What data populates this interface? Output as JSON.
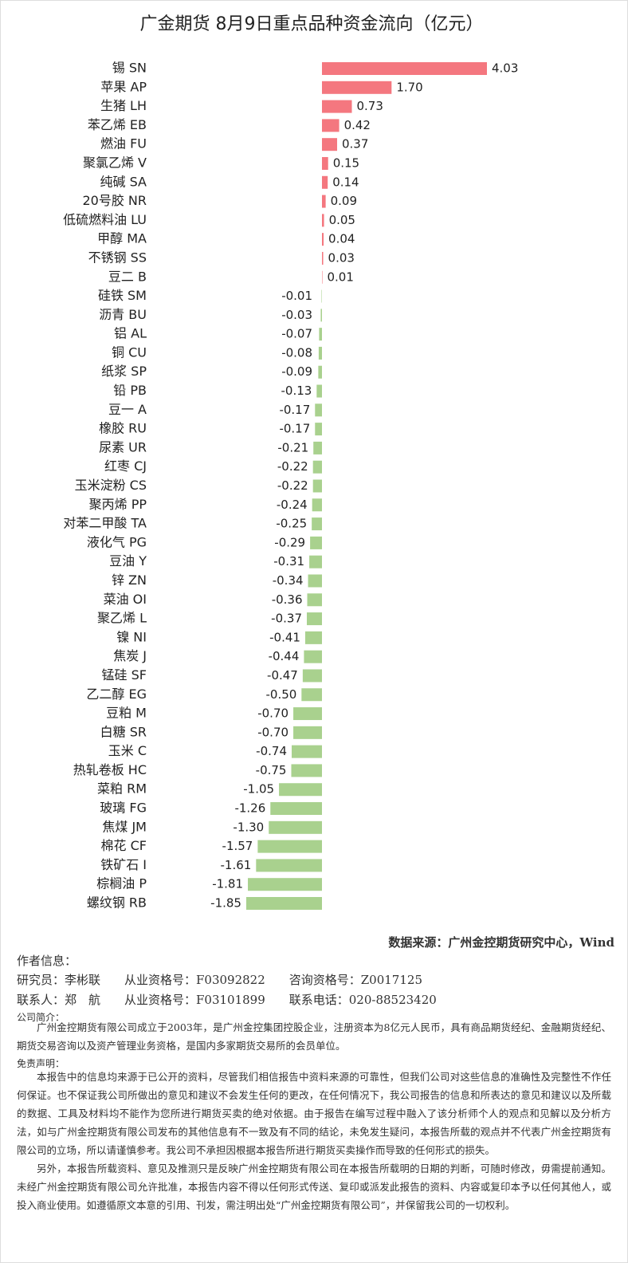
{
  "chart_data": {
    "type": "bar",
    "orientation": "horizontal",
    "title": "广金期货 8月9日重点品种资金流向（亿元）",
    "categories": [
      "锡 SN",
      "苹果 AP",
      "生猪 LH",
      "苯乙烯 EB",
      "燃油 FU",
      "聚氯乙烯 V",
      "纯碱 SA",
      "20号胶 NR",
      "低硫燃料油 LU",
      "甲醇 MA",
      "不锈钢 SS",
      "豆二 B",
      "硅铁 SM",
      "沥青 BU",
      "铝 AL",
      "铜 CU",
      "纸浆 SP",
      "铅 PB",
      "豆一 A",
      "橡胶 RU",
      "尿素 UR",
      "红枣 CJ",
      "玉米淀粉 CS",
      "聚丙烯 PP",
      "对苯二甲酸 TA",
      "液化气 PG",
      "豆油 Y",
      "锌 ZN",
      "菜油 OI",
      "聚乙烯 L",
      "镍 NI",
      "焦炭 J",
      "锰硅 SF",
      "乙二醇 EG",
      "豆粕 M",
      "白糖 SR",
      "玉米 C",
      "热轧卷板 HC",
      "菜粕 RM",
      "玻璃 FG",
      "焦煤 JM",
      "棉花 CF",
      "铁矿石 I",
      "棕榈油 P",
      "螺纹钢 RB"
    ],
    "values": [
      4.03,
      1.7,
      0.73,
      0.42,
      0.37,
      0.15,
      0.14,
      0.09,
      0.05,
      0.04,
      0.03,
      0.01,
      -0.01,
      -0.03,
      -0.07,
      -0.08,
      -0.09,
      -0.13,
      -0.17,
      -0.17,
      -0.21,
      -0.22,
      -0.22,
      -0.24,
      -0.25,
      -0.29,
      -0.31,
      -0.34,
      -0.36,
      -0.37,
      -0.41,
      -0.44,
      -0.47,
      -0.5,
      -0.7,
      -0.7,
      -0.74,
      -0.75,
      -1.05,
      -1.26,
      -1.3,
      -1.57,
      -1.61,
      -1.81,
      -1.85
    ],
    "value_labels": [
      "4.03",
      "1.70",
      "0.73",
      "0.42",
      "0.37",
      "0.15",
      "0.14",
      "0.09",
      "0.05",
      "0.04",
      "0.03",
      "0.01",
      "-0.01",
      "-0.03",
      "-0.07",
      "-0.08",
      "-0.09",
      "-0.13",
      "-0.17",
      "-0.17",
      "-0.21",
      "-0.22",
      "-0.22",
      "-0.24",
      "-0.25",
      "-0.29",
      "-0.31",
      "-0.34",
      "-0.36",
      "-0.37",
      "-0.41",
      "-0.44",
      "-0.47",
      "-0.50",
      "-0.70",
      "-0.70",
      "-0.74",
      "-0.75",
      "-1.05",
      "-1.26",
      "-1.30",
      "-1.57",
      "-1.61",
      "-1.81",
      "-1.85"
    ],
    "positive_color": "#f4777f",
    "negative_color": "#a9d18e"
  },
  "footer": {
    "source": "数据来源：广州金控期货研究中心，Wind",
    "author_heading": "作者信息：",
    "researcher": "研究员：李彬联　　从业资格号：F03092822　　咨询资格号：Z0017125",
    "contact": "联系人：郑　航　　从业资格号：F03101899　　联系电话：020-88523420",
    "company_heading": "公司简介：",
    "company": "广州金控期货有限公司成立于2003年，是广州金控集团控股企业，注册资本为8亿元人民币，具有商品期货经纪、金融期货经纪、期货交易咨询以及资产管理业务资格，是国内多家期货交易所的会员单位。",
    "disclaimer_heading": "免责声明：",
    "disclaimer": [
      "本报告中的信息均来源于已公开的资料，尽管我们相信报告中资料来源的可靠性，但我们公司对这些信息的准确性及完整性不作任何保证。也不保证我公司所做出的意见和建议不会发生任何的更改，在任何情况下，我公司报告的信息和所表达的意见和建议以及所载的数据、工具及材料均不能作为您所进行期货买卖的绝对依据。由于报告在编写过程中融入了该分析师个人的观点和见解以及分析方法，如与广州金控期货有限公司发布的其他信息有不一致及有不同的结论，未免发生疑问，本报告所载的观点并不代表广州金控期货有限公司的立场，所以请谨慎参考。我公司不承担因根据本报告所进行期货买卖操作而导致的任何形式的损失。",
      "另外，本报告所载资料、意见及推测只是反映广州金控期货有限公司在本报告所载明的日期的判断，可随时修改，毋需提前通知。未经广州金控期货有限公司允许批准，本报告内容不得以任何形式传送、复印或派发此报告的资料、内容或复印本予以任何其他人，或投入商业使用。如遵循原文本意的引用、刊发，需注明出处“广州金控期货有限公司”，并保留我公司的一切权利。"
    ]
  }
}
